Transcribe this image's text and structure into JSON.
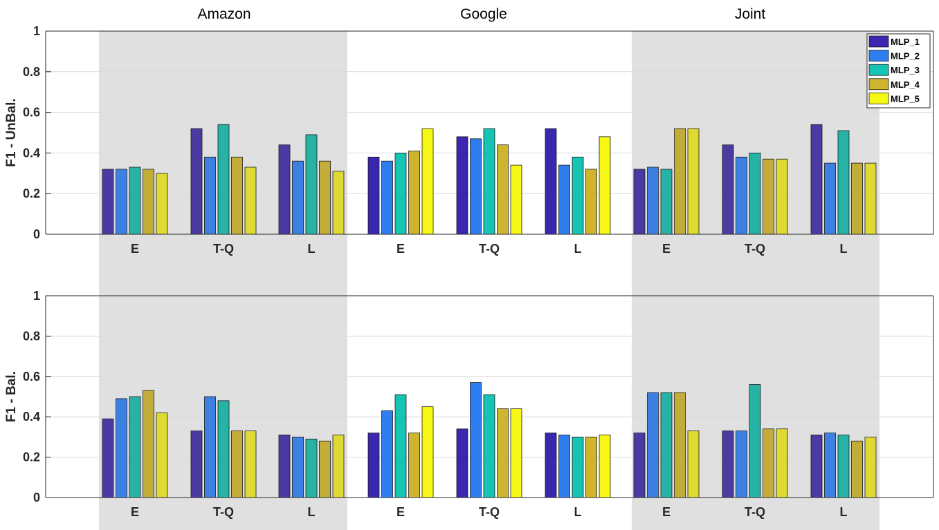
{
  "group_titles": [
    "Amazon",
    "Google",
    "Joint"
  ],
  "chart_data": [
    {
      "type": "bar",
      "ylabel": "F1 - UnBal.",
      "ylim": [
        0,
        1
      ],
      "yticks": [
        "0",
        "0.2",
        "0.4",
        "0.6",
        "0.8",
        "1"
      ],
      "ytick_values": [
        0,
        0.2,
        0.4,
        0.6,
        0.8,
        1
      ],
      "categories": [
        "E",
        "T-Q",
        "L",
        "E",
        "T-Q",
        "L",
        "E",
        "T-Q",
        "L"
      ],
      "groups": [
        "Amazon",
        "Google",
        "Joint"
      ],
      "grid": true,
      "legend_position": "top-right",
      "series": [
        {
          "name": "MLP_1",
          "values": [
            0.32,
            0.52,
            0.44,
            0.38,
            0.48,
            0.52,
            0.32,
            0.44,
            0.54
          ]
        },
        {
          "name": "MLP_2",
          "values": [
            0.32,
            0.38,
            0.36,
            0.36,
            0.47,
            0.34,
            0.33,
            0.38,
            0.35
          ]
        },
        {
          "name": "MLP_3",
          "values": [
            0.33,
            0.54,
            0.49,
            0.4,
            0.52,
            0.38,
            0.32,
            0.4,
            0.51
          ]
        },
        {
          "name": "MLP_4",
          "values": [
            0.32,
            0.38,
            0.36,
            0.41,
            0.44,
            0.32,
            0.52,
            0.37,
            0.35
          ]
        },
        {
          "name": "MLP_5",
          "values": [
            0.3,
            0.33,
            0.31,
            0.52,
            0.34,
            0.48,
            0.52,
            0.37,
            0.35
          ]
        }
      ]
    },
    {
      "type": "bar",
      "ylabel": "F1 - Bal.",
      "ylim": [
        0,
        1
      ],
      "yticks": [
        "0",
        "0.2",
        "0.4",
        "0.6",
        "0.8",
        "1"
      ],
      "ytick_values": [
        0,
        0.2,
        0.4,
        0.6,
        0.8,
        1
      ],
      "categories": [
        "E",
        "T-Q",
        "L",
        "E",
        "T-Q",
        "L",
        "E",
        "T-Q",
        "L"
      ],
      "groups": [
        "Amazon",
        "Google",
        "Joint"
      ],
      "grid": true,
      "series": [
        {
          "name": "MLP_1",
          "values": [
            0.39,
            0.33,
            0.31,
            0.32,
            0.34,
            0.32,
            0.32,
            0.33,
            0.31
          ]
        },
        {
          "name": "MLP_2",
          "values": [
            0.49,
            0.5,
            0.3,
            0.43,
            0.57,
            0.31,
            0.52,
            0.33,
            0.32
          ]
        },
        {
          "name": "MLP_3",
          "values": [
            0.5,
            0.48,
            0.29,
            0.51,
            0.51,
            0.3,
            0.52,
            0.56,
            0.31
          ]
        },
        {
          "name": "MLP_4",
          "values": [
            0.53,
            0.33,
            0.28,
            0.32,
            0.44,
            0.3,
            0.52,
            0.34,
            0.28
          ]
        },
        {
          "name": "MLP_5",
          "values": [
            0.42,
            0.33,
            0.31,
            0.45,
            0.44,
            0.31,
            0.33,
            0.34,
            0.3
          ]
        }
      ]
    }
  ],
  "colors": {
    "shade": "#e0e0e0",
    "series_vivid": [
      "#3a27b0",
      "#2f7ef0",
      "#16c4b4",
      "#cfb52e",
      "#f7f716"
    ],
    "series_muted": [
      "#4a3aa2",
      "#3e80e2",
      "#26b3a6",
      "#c3ad3a",
      "#dfd934"
    ]
  }
}
